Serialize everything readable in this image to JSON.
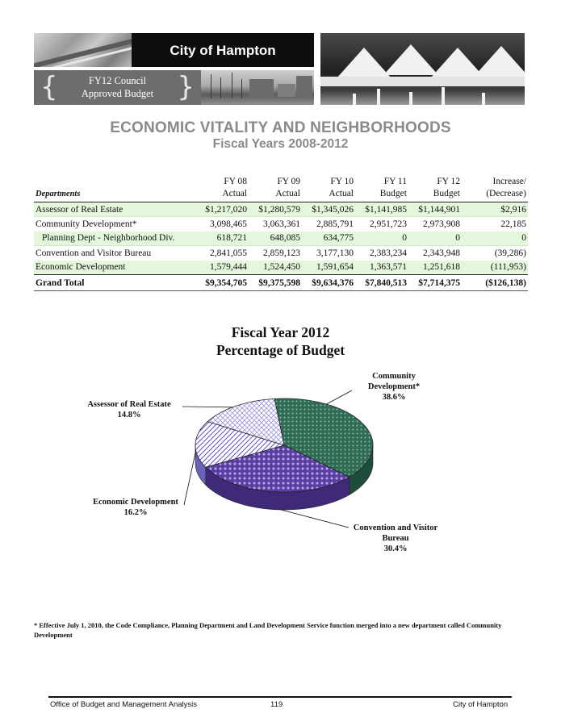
{
  "banner": {
    "city": "City of Hampton",
    "budget_line1": "FY12 Council",
    "budget_line2": "Approved Budget",
    "brace_left": "{",
    "brace_right": "}"
  },
  "title": "ECONOMIC VITALITY AND NEIGHBORHOODS",
  "subtitle": "Fiscal Years 2008-2012",
  "table": {
    "header_top": [
      "FY 08",
      "FY 09",
      "FY 10",
      "FY 11",
      "FY 12",
      "Increase/"
    ],
    "header_bottom": [
      "Departments",
      "Actual",
      "Actual",
      "Actual",
      "Budget",
      "Budget",
      "(Decrease)"
    ],
    "rows": [
      {
        "dept": "Assessor of Real Estate",
        "fy08": "$1,217,020",
        "fy09": "$1,280,579",
        "fy10": "$1,345,026",
        "fy11": "$1,141,985",
        "fy12": "$1,144,901",
        "change": "$2,916"
      },
      {
        "dept": "Community Development*",
        "fy08": "3,098,465",
        "fy09": "3,063,361",
        "fy10": "2,885,791",
        "fy11": "2,951,723",
        "fy12": "2,973,908",
        "change": "22,185"
      },
      {
        "dept": "Planning Dept - Neighborhood Div.",
        "fy08": "618,721",
        "fy09": "648,085",
        "fy10": "634,775",
        "fy11": "0",
        "fy12": "0",
        "change": "0"
      },
      {
        "dept": "Convention and Visitor Bureau",
        "fy08": "2,841,055",
        "fy09": "2,859,123",
        "fy10": "3,177,130",
        "fy11": "2,383,234",
        "fy12": "2,343,948",
        "change": "(39,286)"
      },
      {
        "dept": "Economic Development",
        "fy08": "1,579,444",
        "fy09": "1,524,450",
        "fy10": "1,591,654",
        "fy11": "1,363,571",
        "fy12": "1,251,618",
        "change": "(111,953)"
      }
    ],
    "total": {
      "dept": "Grand Total",
      "fy08": "$9,354,705",
      "fy09": "$9,375,598",
      "fy10": "$9,634,376",
      "fy11": "$7,840,513",
      "fy12": "$7,714,375",
      "change": "($126,138)"
    }
  },
  "chart_data": {
    "type": "pie",
    "title": "Fiscal Year 2012",
    "subtitle": "Percentage of Budget",
    "slices": [
      {
        "label_lines": [
          "Community",
          "Development*"
        ],
        "pct_text": "38.6%",
        "value": 38.6,
        "color": "#2f6b55"
      },
      {
        "label_lines": [
          "Convention and Visitor",
          "Bureau"
        ],
        "pct_text": "30.4%",
        "value": 30.4,
        "color": "#5b3fa0"
      },
      {
        "label_lines": [
          "Economic Development"
        ],
        "pct_text": "16.2%",
        "value": 16.2,
        "color": "#8f86d6"
      },
      {
        "label_lines": [
          "Assessor of Real Estate"
        ],
        "pct_text": "14.8%",
        "value": 14.8,
        "color": "#c9c6ef"
      }
    ]
  },
  "footnote": "* Effective July 1, 2010, the Code Compliance, Planning Department and Land Development Service function merged into a new department called Community Development",
  "footer": {
    "left": "Office of Budget and Management Analysis",
    "page": "119",
    "right": "City of Hampton"
  }
}
